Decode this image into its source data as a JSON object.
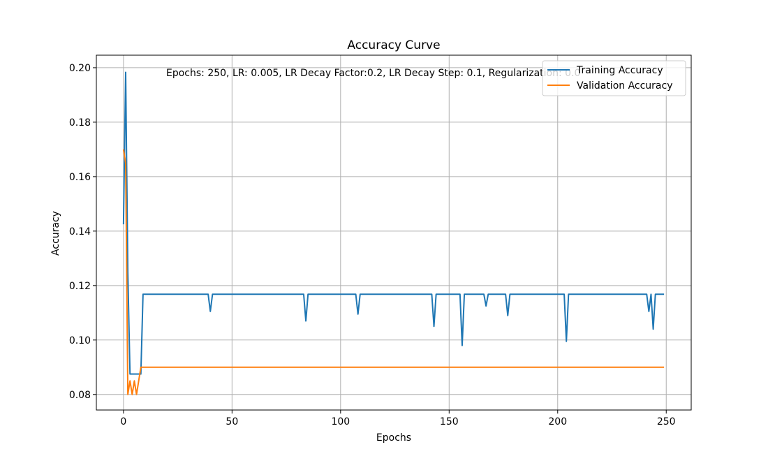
{
  "chart_data": {
    "type": "line",
    "title": "Accuracy Curve",
    "xlabel": "Epochs",
    "ylabel": "Accuracy",
    "annotation": "Epochs: 250, LR: 0.005, LR Decay Factor:0.2, LR Decay Step: 0.1, Regularization: 0.0",
    "xlim": [
      -12.5,
      261.5
    ],
    "ylim": [
      0.0743,
      0.2046
    ],
    "xticks": [
      0,
      50,
      100,
      150,
      200,
      250
    ],
    "yticks": [
      0.08,
      0.1,
      0.12,
      0.14,
      0.16,
      0.18,
      0.2
    ],
    "xtick_labels": [
      "0",
      "50",
      "100",
      "150",
      "200",
      "250"
    ],
    "ytick_labels": [
      "0.08",
      "0.10",
      "0.12",
      "0.14",
      "0.16",
      "0.18",
      "0.20"
    ],
    "grid": true,
    "legend_position": "top-right",
    "series": [
      {
        "name": "Training Accuracy",
        "color": "#1f77b4",
        "base": 0.1168,
        "points": [
          [
            0,
            0.1425
          ],
          [
            1,
            0.1983
          ],
          [
            2,
            0.125
          ],
          [
            3,
            0.0875
          ],
          [
            4,
            0.0875
          ],
          [
            5,
            0.0875
          ],
          [
            6,
            0.0875
          ],
          [
            7,
            0.0875
          ],
          [
            8,
            0.0875
          ],
          [
            9,
            0.1168
          ]
        ],
        "dips": [
          [
            40,
            0.1105
          ],
          [
            84,
            0.107
          ],
          [
            108,
            0.1095
          ],
          [
            143,
            0.105
          ],
          [
            156,
            0.098
          ],
          [
            167,
            0.1125
          ],
          [
            177,
            0.109
          ],
          [
            204,
            0.0995
          ],
          [
            242,
            0.1105
          ],
          [
            244,
            0.104
          ]
        ],
        "end": 249
      },
      {
        "name": "Validation Accuracy",
        "color": "#ff7f0e",
        "base": 0.09,
        "points": [
          [
            0,
            0.17
          ],
          [
            1,
            0.165
          ],
          [
            2,
            0.08
          ],
          [
            3,
            0.085
          ],
          [
            4,
            0.08
          ],
          [
            5,
            0.085
          ],
          [
            6,
            0.08
          ],
          [
            7,
            0.085
          ],
          [
            8,
            0.09
          ]
        ],
        "dips": [],
        "end": 249
      }
    ]
  }
}
